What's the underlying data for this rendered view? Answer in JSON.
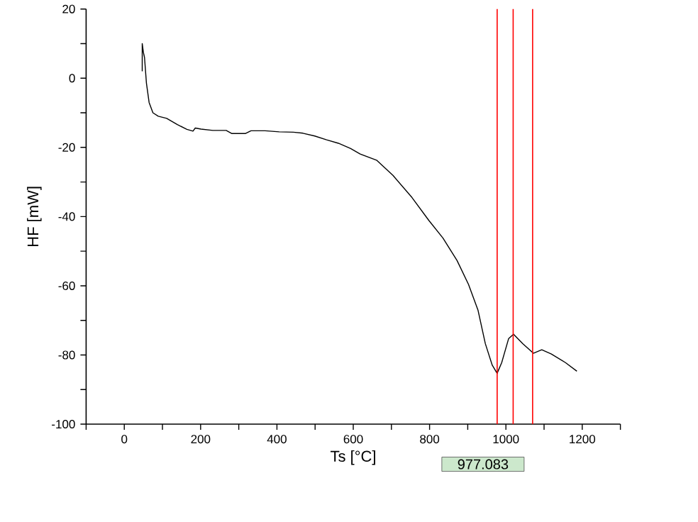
{
  "chart_data": {
    "type": "line",
    "xlabel": "Ts [°C]",
    "ylabel": "HF [mW]",
    "xlim": [
      -100,
      1300
    ],
    "ylim": [
      -100,
      20
    ],
    "xticks": [
      {
        "value": -100,
        "label": null
      },
      0,
      {
        "value": 100,
        "label": null
      },
      200,
      {
        "value": 300,
        "label": null
      },
      400,
      {
        "value": 500,
        "label": null
      },
      600,
      {
        "value": 700,
        "label": null
      },
      800,
      {
        "value": 900,
        "label": null
      },
      1000,
      {
        "value": 1100,
        "label": null
      },
      1200,
      {
        "value": 1300,
        "label": null
      }
    ],
    "yticks": [
      -100,
      {
        "value": -90,
        "label": null
      },
      -80,
      {
        "value": -70,
        "label": null
      },
      -60,
      {
        "value": -50,
        "label": null
      },
      -40,
      {
        "value": -30,
        "label": null
      },
      -20,
      {
        "value": -10,
        "label": null
      },
      0,
      {
        "value": 10,
        "label": null
      },
      20
    ],
    "marker": "none",
    "line_style": "solid",
    "series": [
      {
        "color": "#000000",
        "x": [
          47,
          47,
          50,
          53,
          58,
          65,
          75,
          89,
          111,
          139,
          164,
          180,
          186,
          201,
          232,
          267,
          282,
          317,
          332,
          369,
          406,
          443,
          468,
          499,
          530,
          561,
          593,
          618,
          661,
          704,
          754,
          798,
          835,
          872,
          902,
          927,
          946,
          964,
          977,
          989,
          1007,
          1020,
          1044,
          1072,
          1094,
          1119,
          1156,
          1186
        ],
        "values": [
          2,
          10,
          7.5,
          6,
          -1.4,
          -7,
          -10,
          -11,
          -11.6,
          -13.4,
          -14.8,
          -15.3,
          -14.4,
          -14.7,
          -15.1,
          -15.1,
          -16,
          -16,
          -15.2,
          -15.2,
          -15.5,
          -15.6,
          -15.9,
          -16.7,
          -17.8,
          -18.8,
          -20.3,
          -21.9,
          -23.7,
          -28.1,
          -34.5,
          -41.1,
          -46.2,
          -52.7,
          -59.6,
          -67.1,
          -76.7,
          -82.9,
          -85.3,
          -82.2,
          -75.3,
          -74,
          -76.7,
          -79.5,
          -78.5,
          -79.7,
          -82.2,
          -84.7
        ]
      }
    ],
    "ref_lines": [
      {
        "axis": "x",
        "value": 977.083,
        "label": "977.083",
        "color": "#ff0000"
      },
      {
        "axis": "x",
        "value": 1019,
        "color": "#ff0000"
      },
      {
        "axis": "x",
        "value": 1070,
        "color": "#ff0000"
      }
    ]
  }
}
